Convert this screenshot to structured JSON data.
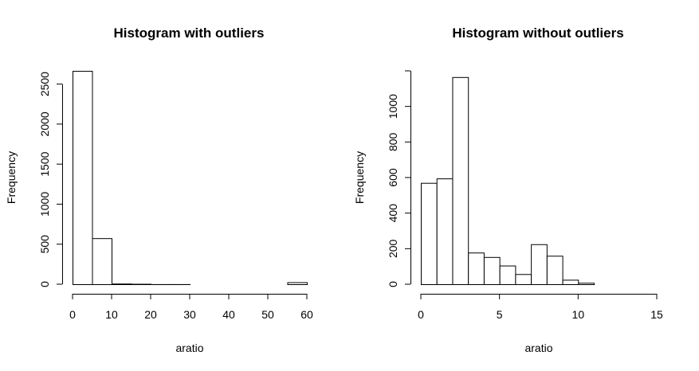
{
  "chart_data": [
    {
      "type": "bar",
      "title": "Histogram with outliers",
      "xlabel": "aratio",
      "ylabel": "Frequency",
      "bins": [
        {
          "x0": 0,
          "x1": 5,
          "value": 2665
        },
        {
          "x0": 5,
          "x1": 10,
          "value": 575
        },
        {
          "x0": 10,
          "x1": 15,
          "value": 8
        },
        {
          "x0": 15,
          "x1": 20,
          "value": 5
        },
        {
          "x0": 20,
          "x1": 25,
          "value": 1
        },
        {
          "x0": 25,
          "x1": 30,
          "value": 1
        },
        {
          "x0": 30,
          "x1": 35,
          "value": 0
        },
        {
          "x0": 35,
          "x1": 40,
          "value": 0
        },
        {
          "x0": 40,
          "x1": 45,
          "value": 0
        },
        {
          "x0": 45,
          "x1": 50,
          "value": 0
        },
        {
          "x0": 50,
          "x1": 55,
          "value": 0
        },
        {
          "x0": 55,
          "x1": 60,
          "value": 25
        }
      ],
      "xlim": [
        0,
        60
      ],
      "ylim": [
        0,
        2665
      ],
      "xticks": [
        "0",
        "10",
        "20",
        "30",
        "40",
        "50",
        "60"
      ],
      "yticks": [
        "0",
        "500",
        "1000",
        "1500",
        "2000",
        "2500"
      ],
      "grid": false
    },
    {
      "type": "bar",
      "title": "Histogram without outliers",
      "xlabel": "aratio",
      "ylabel": "Frequency",
      "bins": [
        {
          "x0": 0,
          "x1": 1,
          "value": 570
        },
        {
          "x0": 1,
          "x1": 2,
          "value": 595
        },
        {
          "x0": 2,
          "x1": 3,
          "value": 1165
        },
        {
          "x0": 3,
          "x1": 4,
          "value": 178
        },
        {
          "x0": 4,
          "x1": 5,
          "value": 153
        },
        {
          "x0": 5,
          "x1": 6,
          "value": 105
        },
        {
          "x0": 6,
          "x1": 7,
          "value": 57
        },
        {
          "x0": 7,
          "x1": 8,
          "value": 225
        },
        {
          "x0": 8,
          "x1": 9,
          "value": 160
        },
        {
          "x0": 9,
          "x1": 10,
          "value": 25
        },
        {
          "x0": 10,
          "x1": 11,
          "value": 8
        },
        {
          "x0": 11,
          "x1": 12,
          "value": 0
        },
        {
          "x0": 12,
          "x1": 13,
          "value": 0
        },
        {
          "x0": 13,
          "x1": 14,
          "value": 0
        },
        {
          "x0": 14,
          "x1": 15,
          "value": 0
        }
      ],
      "xlim": [
        0,
        15
      ],
      "ylim": [
        0,
        1200
      ],
      "xticks": [
        "0",
        "5",
        "10",
        "15"
      ],
      "yticks": [
        "0",
        "200",
        "400",
        "600",
        "800",
        "1000"
      ],
      "grid": false
    }
  ]
}
